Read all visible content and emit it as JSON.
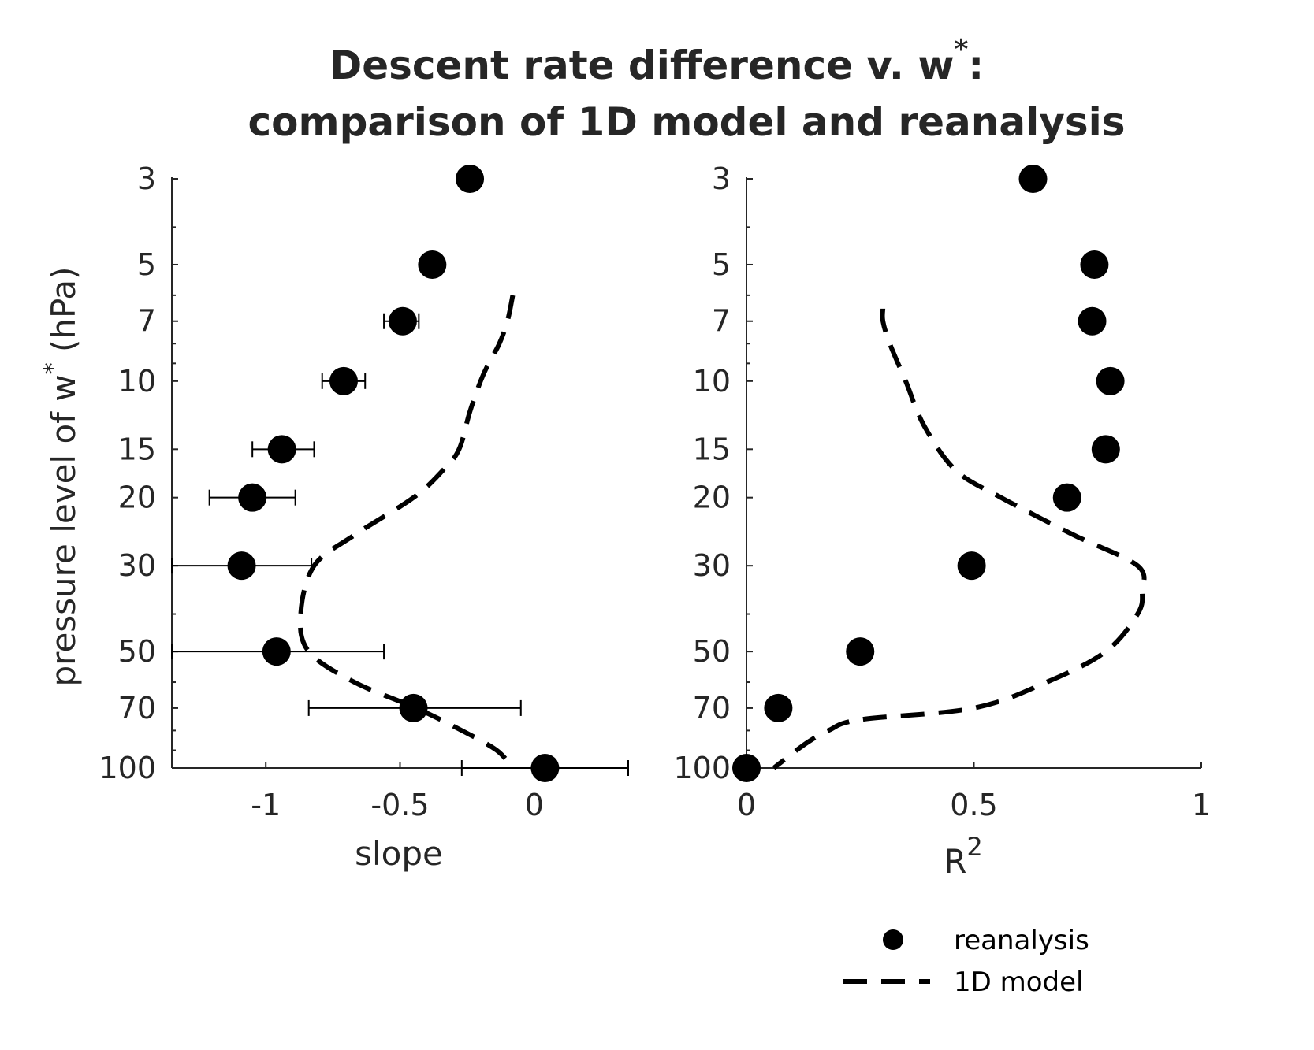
{
  "chart_data": {
    "type": "scatter",
    "title_line1": "Descent rate difference v. w",
    "title_sup": "*",
    "title_colon": ":",
    "title_line2": "comparison of  1D model and reanalysis",
    "ylabel_main": "pressure level of w",
    "ylabel_sup": "*",
    "ylabel_unit": " (hPa)",
    "yscale": "log",
    "yreversed": true,
    "ylim": [
      3,
      100
    ],
    "yticks": [
      3,
      5,
      7,
      10,
      15,
      20,
      30,
      50,
      70,
      100
    ],
    "yminor_ticks": [
      4,
      6,
      8,
      9,
      40,
      60,
      80,
      90
    ],
    "panels": [
      {
        "name": "slope",
        "xlabel": "slope",
        "xlabel_sup": "",
        "xlim": [
          -1.35,
          0.35
        ],
        "xticks": [
          -1,
          -0.5,
          0
        ],
        "xtick_labels": [
          "-1",
          "-0.5",
          "0"
        ],
        "reanalysis": {
          "pressure": [
            3,
            5,
            7,
            10,
            15,
            20,
            30,
            50,
            70,
            100
          ],
          "values": [
            -0.24,
            -0.38,
            -0.49,
            -0.71,
            -0.94,
            -1.05,
            -1.09,
            -0.96,
            -0.45,
            0.04
          ],
          "err_low": [
            null,
            -0.42,
            -0.56,
            -0.79,
            -1.05,
            -1.21,
            -1.35,
            -1.35,
            -0.84,
            -0.27
          ],
          "err_high": [
            null,
            -0.34,
            -0.43,
            -0.63,
            -0.82,
            -0.89,
            -0.83,
            -0.56,
            -0.05,
            0.35
          ]
        },
        "model_1d": {
          "pressure": [
            6,
            7,
            8,
            9,
            10,
            12,
            15,
            17,
            20,
            25,
            30,
            40,
            50,
            60,
            70,
            80,
            90,
            100
          ],
          "values": [
            -0.08,
            -0.1,
            -0.13,
            -0.17,
            -0.2,
            -0.24,
            -0.28,
            -0.34,
            -0.45,
            -0.67,
            -0.82,
            -0.87,
            -0.84,
            -0.67,
            -0.44,
            -0.27,
            -0.14,
            -0.08
          ]
        }
      },
      {
        "name": "r2",
        "xlabel": "R",
        "xlabel_sup": "2",
        "xlim": [
          0,
          1
        ],
        "xticks": [
          0,
          0.5,
          1
        ],
        "xtick_labels": [
          "0",
          "0.5",
          "1"
        ],
        "reanalysis": {
          "pressure": [
            3,
            5,
            7,
            10,
            15,
            20,
            30,
            50,
            70,
            100
          ],
          "values": [
            0.63,
            0.765,
            0.76,
            0.8,
            0.79,
            0.705,
            0.495,
            0.25,
            0.07,
            0.0
          ]
        },
        "model_1d": {
          "pressure": [
            6.5,
            7,
            8,
            10,
            13,
            17,
            20,
            25,
            30,
            35,
            40,
            50,
            60,
            70,
            75,
            80,
            85,
            90,
            100
          ],
          "values": [
            0.3,
            0.3,
            0.315,
            0.35,
            0.39,
            0.46,
            0.56,
            0.72,
            0.86,
            0.87,
            0.86,
            0.79,
            0.66,
            0.5,
            0.25,
            0.18,
            0.14,
            0.11,
            0.06
          ]
        }
      }
    ],
    "legend": {
      "placement": "bottom-right",
      "entries": [
        {
          "label": "reanalysis",
          "marker": "filled-circle"
        },
        {
          "label": "1D model",
          "marker": "dashed-line"
        }
      ]
    }
  }
}
